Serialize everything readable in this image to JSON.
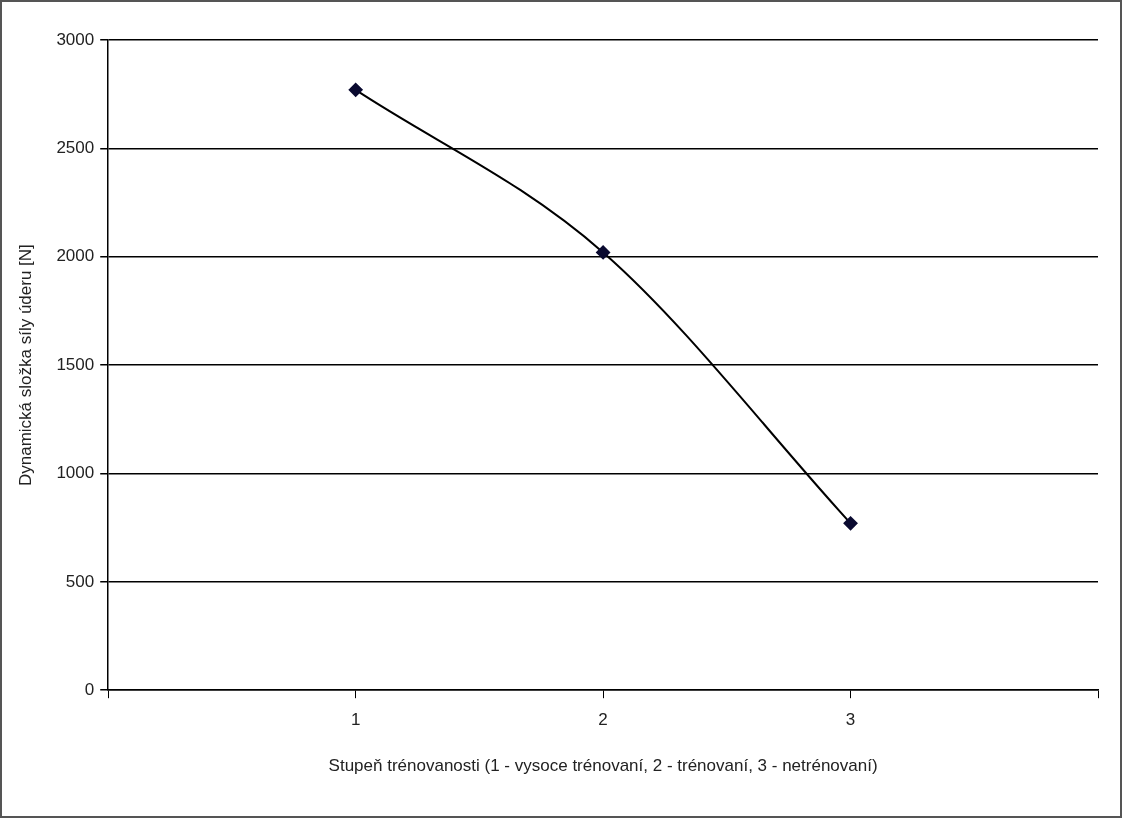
{
  "chart_data": {
    "type": "line",
    "xlabel": "Stupeň trénovanosti (1 - vysoce trénovaní, 2 - trénovaní, 3 - netrénovaní)",
    "ylabel": "Dynamická složka síly úderu [N]",
    "x": [
      1,
      2,
      3
    ],
    "series": [
      {
        "color": "#0a0a30",
        "values": [
          2770,
          2020,
          770
        ]
      }
    ],
    "xlim": [
      0,
      4
    ],
    "xticks": [
      {
        "value": 0,
        "label": null
      },
      1,
      2,
      3,
      {
        "value": 4,
        "label": null
      }
    ],
    "ylim": [
      0,
      3000
    ],
    "yticks": [
      0,
      500,
      1000,
      1500,
      2000,
      2500,
      3000
    ],
    "grid": "y",
    "legend": false,
    "marker": "diamond",
    "line_style": "solid"
  }
}
